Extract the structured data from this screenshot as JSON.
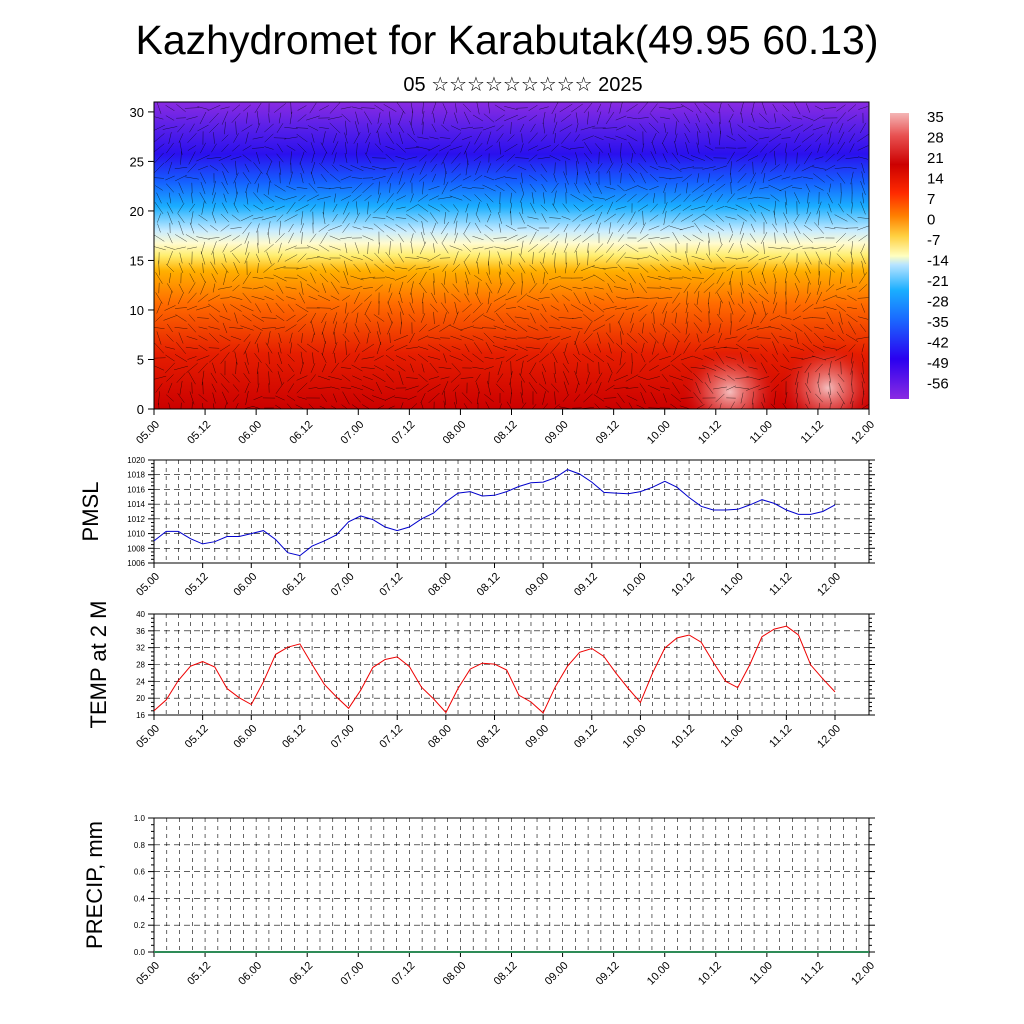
{
  "title": "Kazhydromet for Karabutak(49.95 60.13)",
  "subtitle": "05 ☆☆☆☆☆☆☆☆☆ 2025",
  "time_labels": [
    "05.00",
    "05.12",
    "06.00",
    "06.12",
    "07.00",
    "07.12",
    "08.00",
    "08.12",
    "09.00",
    "09.12",
    "10.00",
    "10.12",
    "11.00",
    "11.12",
    "12.00"
  ],
  "chart_data": [
    {
      "type": "heatmap",
      "title": "",
      "xlabel": "",
      "ylabel": "",
      "x": [
        "05.00",
        "05.12",
        "06.00",
        "06.12",
        "07.00",
        "07.12",
        "08.00",
        "08.12",
        "09.00",
        "09.12",
        "10.00",
        "10.12",
        "11.00",
        "11.12",
        "12.00"
      ],
      "ylim": [
        0,
        31
      ],
      "yticks": [
        0,
        5,
        10,
        15,
        20,
        25,
        30
      ],
      "colorbar_labels": [
        "35",
        "28",
        "21",
        "14",
        "7",
        "0",
        "-7",
        "-14",
        "-21",
        "-28",
        "-35",
        "-42",
        "-49",
        "-56"
      ],
      "colors": {
        "warm_high": "#f4b6b6",
        "warm": "#cc0000",
        "orange": "#ff7a00",
        "neutral": "#ffffc0",
        "cool": "#1aaeff",
        "cold": "#3000e6",
        "coldest": "#8a2be2"
      },
      "overlay": "wind vectors"
    },
    {
      "type": "line",
      "ylabel": "PMSL",
      "x": [
        "05.00",
        "05.03",
        "05.06",
        "05.09",
        "05.12",
        "05.15",
        "05.18",
        "05.21",
        "06.00",
        "06.03",
        "06.06",
        "06.09",
        "06.12",
        "06.15",
        "06.18",
        "06.21",
        "07.00",
        "07.03",
        "07.06",
        "07.09",
        "07.12",
        "07.15",
        "07.18",
        "07.21",
        "08.00",
        "08.03",
        "08.06",
        "08.09",
        "08.12",
        "08.15",
        "08.18",
        "08.21",
        "09.00",
        "09.03",
        "09.06",
        "09.09",
        "09.12",
        "09.15",
        "09.18",
        "09.21",
        "10.00",
        "10.03",
        "10.06",
        "10.09",
        "10.12",
        "10.15",
        "10.18",
        "10.21",
        "11.00",
        "11.03",
        "11.06",
        "11.09",
        "11.12",
        "11.15",
        "11.18",
        "11.21",
        "12.00"
      ],
      "ylim": [
        1006,
        1020
      ],
      "yticks": [
        1006,
        1008,
        1010,
        1012,
        1014,
        1016,
        1018,
        1020
      ],
      "series": [
        {
          "values": [
            1009.0,
            1010.3,
            1010.3,
            1009.3,
            1008.6,
            1008.9,
            1009.6,
            1009.6,
            1010.0,
            1010.4,
            1009.2,
            1007.4,
            1007.0,
            1008.3,
            1009.0,
            1009.8,
            1011.6,
            1012.4,
            1011.9,
            1010.9,
            1010.4,
            1010.9,
            1012.0,
            1012.8,
            1014.3,
            1015.5,
            1015.7,
            1015.1,
            1015.2,
            1015.7,
            1016.4,
            1016.9,
            1017.0,
            1017.6,
            1018.7,
            1018.1,
            1017.0,
            1015.6,
            1015.5,
            1015.4,
            1015.7,
            1016.3,
            1017.1,
            1016.3,
            1014.9,
            1013.7,
            1013.2,
            1013.2,
            1013.3,
            1013.9,
            1014.6,
            1014.1,
            1013.2,
            1012.6,
            1012.6,
            1013.0,
            1013.9
          ]
        }
      ],
      "line_color": "#0000cc"
    },
    {
      "type": "line",
      "ylabel": "TEMP at 2 M",
      "x": [
        "05.00",
        "05.03",
        "05.06",
        "05.09",
        "05.12",
        "05.15",
        "05.18",
        "05.21",
        "06.00",
        "06.03",
        "06.06",
        "06.09",
        "06.12",
        "06.15",
        "06.18",
        "06.21",
        "07.00",
        "07.03",
        "07.06",
        "07.09",
        "07.12",
        "07.15",
        "07.18",
        "07.21",
        "08.00",
        "08.03",
        "08.06",
        "08.09",
        "08.12",
        "08.15",
        "08.18",
        "08.21",
        "09.00",
        "09.03",
        "09.06",
        "09.09",
        "09.12",
        "09.15",
        "09.18",
        "09.21",
        "10.00",
        "10.03",
        "10.06",
        "10.09",
        "10.12",
        "10.15",
        "10.18",
        "10.21",
        "11.00",
        "11.03",
        "11.06",
        "11.09",
        "11.12",
        "11.15",
        "11.18",
        "11.21",
        "12.00"
      ],
      "ylim": [
        16,
        40
      ],
      "yticks": [
        16,
        20,
        24,
        28,
        32,
        36,
        40
      ],
      "series": [
        {
          "values": [
            17.0,
            19.6,
            24.2,
            27.6,
            28.7,
            27.4,
            22.3,
            20.1,
            18.5,
            23.9,
            30.4,
            32.1,
            32.9,
            28.0,
            23.3,
            20.3,
            17.6,
            21.9,
            27.3,
            29.2,
            29.8,
            27.5,
            22.6,
            19.8,
            16.6,
            22.3,
            26.9,
            28.3,
            28.1,
            26.7,
            20.7,
            19.1,
            16.5,
            22.7,
            27.6,
            30.9,
            31.8,
            29.9,
            25.9,
            22.3,
            19.0,
            26.0,
            31.9,
            34.3,
            35.0,
            33.3,
            28.5,
            24.0,
            22.5,
            28.0,
            34.6,
            36.4,
            37.1,
            35.0,
            27.9,
            24.6,
            21.5
          ]
        }
      ],
      "line_color": "#ee0000"
    },
    {
      "type": "line",
      "ylabel": "PRECIP, mm",
      "x": [
        "05.00",
        "05.12",
        "06.00",
        "06.12",
        "07.00",
        "07.12",
        "08.00",
        "08.12",
        "09.00",
        "09.12",
        "10.00",
        "10.12",
        "11.00",
        "11.12",
        "12.00"
      ],
      "ylim": [
        0.0,
        1.0
      ],
      "yticks": [
        "0.0",
        "0.2",
        "0.4",
        "0.6",
        "0.8",
        "1.0"
      ],
      "series": [
        {
          "values": [
            0,
            0,
            0,
            0,
            0,
            0,
            0,
            0,
            0,
            0,
            0,
            0,
            0,
            0,
            0
          ]
        }
      ],
      "line_color": "#2e8b57"
    }
  ]
}
